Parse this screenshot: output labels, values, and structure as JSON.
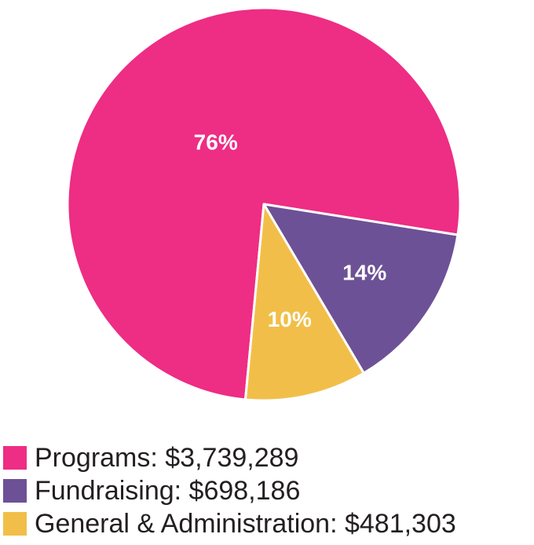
{
  "chart_data": {
    "type": "pie",
    "slices": [
      {
        "label": "Programs",
        "amount": "$3,739,289",
        "value": 76,
        "percent_label": "76%",
        "color": "#ee2d84"
      },
      {
        "label": "Fundraising",
        "amount": "$698,186",
        "value": 14,
        "percent_label": "14%",
        "color": "#6d5196"
      },
      {
        "label": "General & Administration",
        "amount": "$481,303",
        "value": 10,
        "percent_label": "10%",
        "color": "#f1bf49"
      }
    ],
    "legend": {
      "placement": "bottom",
      "separator": ": "
    }
  }
}
